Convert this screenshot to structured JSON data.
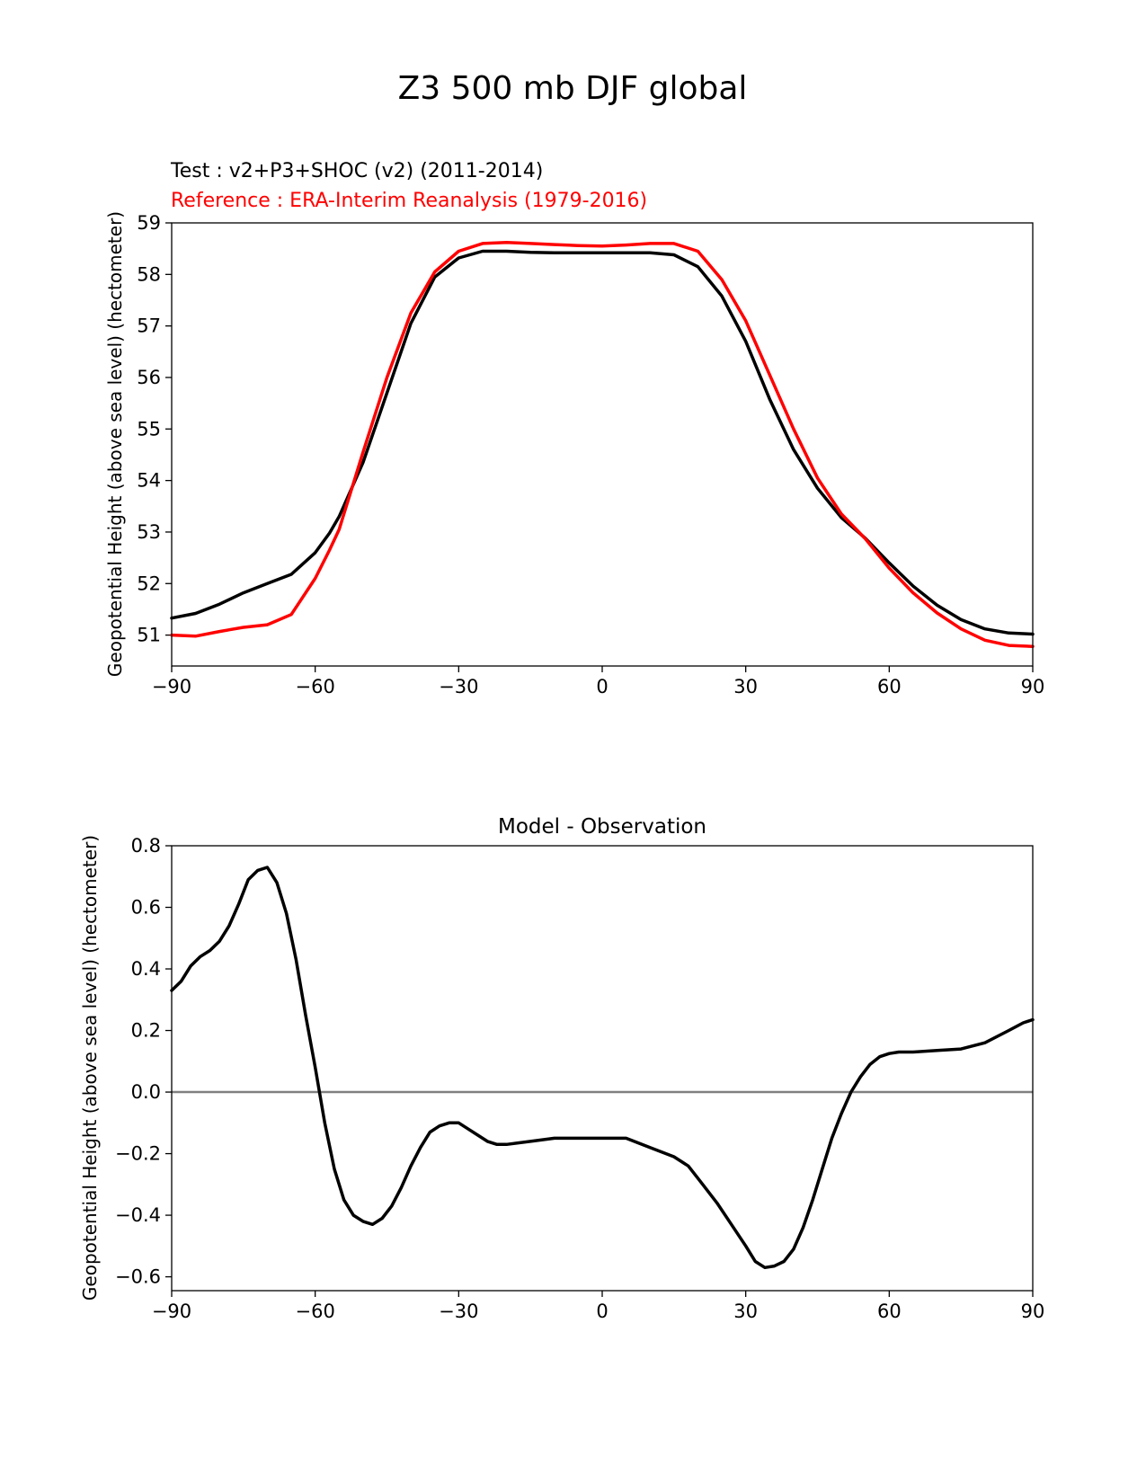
{
  "suptitle": "Z3 500 mb DJF global",
  "chart_data": [
    {
      "type": "line",
      "test_label": "Test : v2+P3+SHOC (v2) (2011-2014)",
      "reference_label": "Reference : ERA-Interim Reanalysis (1979-2016)",
      "xlabel": "",
      "ylabel": "Geopotential Height (above sea level) (hectometer)",
      "xlim": [
        -90,
        90
      ],
      "ylim": [
        50.4,
        59
      ],
      "xticks": [
        -90,
        -60,
        -30,
        0,
        30,
        60,
        90
      ],
      "xtick_labels": [
        "−90",
        "−60",
        "−30",
        "0",
        "30",
        "60",
        "90"
      ],
      "yticks": [
        51,
        52,
        53,
        54,
        55,
        56,
        57,
        58,
        59
      ],
      "ytick_labels": [
        "51",
        "52",
        "53",
        "54",
        "55",
        "56",
        "57",
        "58",
        "59"
      ],
      "grid": false,
      "series": [
        {
          "name": "Test",
          "color": "#000000",
          "x": [
            -90,
            -85,
            -80,
            -75,
            -70,
            -65,
            -60,
            -57,
            -55,
            -50,
            -45,
            -40,
            -35,
            -30,
            -25,
            -20,
            -15,
            -10,
            -5,
            0,
            5,
            10,
            15,
            20,
            25,
            30,
            35,
            40,
            45,
            50,
            55,
            60,
            65,
            70,
            75,
            80,
            85,
            90
          ],
          "y": [
            51.33,
            51.42,
            51.6,
            51.82,
            52.0,
            52.18,
            52.6,
            52.98,
            53.3,
            54.35,
            55.7,
            57.05,
            57.95,
            58.32,
            58.45,
            58.45,
            58.43,
            58.42,
            58.42,
            58.42,
            58.42,
            58.42,
            58.38,
            58.15,
            57.58,
            56.7,
            55.58,
            54.6,
            53.85,
            53.28,
            52.88,
            52.4,
            51.95,
            51.58,
            51.3,
            51.12,
            51.04,
            51.02
          ]
        },
        {
          "name": "Reference",
          "color": "#ff0000",
          "x": [
            -90,
            -85,
            -80,
            -75,
            -70,
            -65,
            -60,
            -57,
            -55,
            -50,
            -45,
            -40,
            -35,
            -30,
            -25,
            -20,
            -15,
            -10,
            -5,
            0,
            5,
            10,
            15,
            20,
            25,
            30,
            35,
            40,
            45,
            50,
            55,
            60,
            65,
            70,
            75,
            80,
            85,
            90
          ],
          "y": [
            51.0,
            50.98,
            51.07,
            51.15,
            51.2,
            51.4,
            52.1,
            52.65,
            53.05,
            54.55,
            56.0,
            57.25,
            58.05,
            58.45,
            58.6,
            58.62,
            58.6,
            58.58,
            58.56,
            58.55,
            58.57,
            58.6,
            58.6,
            58.45,
            57.9,
            57.1,
            56.05,
            55.0,
            54.05,
            53.35,
            52.87,
            52.3,
            51.82,
            51.43,
            51.12,
            50.9,
            50.8,
            50.78
          ]
        }
      ]
    },
    {
      "type": "line",
      "title": "Model - Observation",
      "xlabel": "",
      "ylabel": "Geopotential Height (above sea level) (hectometer)",
      "xlim": [
        -90,
        90
      ],
      "ylim": [
        -0.645,
        0.8
      ],
      "xticks": [
        -90,
        -60,
        -30,
        0,
        30,
        60,
        90
      ],
      "xtick_labels": [
        "−90",
        "−60",
        "−30",
        "0",
        "30",
        "60",
        "90"
      ],
      "yticks": [
        -0.6,
        -0.4,
        -0.2,
        0.0,
        0.2,
        0.4,
        0.6,
        0.8
      ],
      "ytick_labels": [
        "−0.6",
        "−0.4",
        "−0.2",
        "0.0",
        "0.2",
        "0.4",
        "0.6",
        "0.8"
      ],
      "grid": false,
      "zero_line_color": "#808080",
      "series": [
        {
          "name": "Model - Observation",
          "color": "#000000",
          "x": [
            -90,
            -88,
            -86,
            -84,
            -82,
            -80,
            -78,
            -76,
            -74,
            -72,
            -70,
            -68,
            -66,
            -64,
            -62,
            -60,
            -58,
            -56,
            -54,
            -52,
            -50,
            -48,
            -46,
            -44,
            -42,
            -40,
            -38,
            -36,
            -34,
            -32,
            -30,
            -28,
            -26,
            -24,
            -22,
            -20,
            -15,
            -10,
            -5,
            0,
            5,
            10,
            15,
            18,
            21,
            24,
            27,
            30,
            32,
            34,
            36,
            38,
            40,
            42,
            44,
            46,
            48,
            50,
            52,
            54,
            56,
            58,
            60,
            62,
            65,
            70,
            75,
            80,
            85,
            88,
            90
          ],
          "y": [
            0.33,
            0.36,
            0.41,
            0.44,
            0.46,
            0.49,
            0.54,
            0.61,
            0.69,
            0.72,
            0.73,
            0.68,
            0.58,
            0.43,
            0.25,
            0.08,
            -0.1,
            -0.25,
            -0.35,
            -0.4,
            -0.42,
            -0.43,
            -0.41,
            -0.37,
            -0.31,
            -0.24,
            -0.18,
            -0.13,
            -0.11,
            -0.1,
            -0.1,
            -0.12,
            -0.14,
            -0.16,
            -0.17,
            -0.17,
            -0.16,
            -0.15,
            -0.15,
            -0.15,
            -0.15,
            -0.18,
            -0.21,
            -0.24,
            -0.3,
            -0.36,
            -0.43,
            -0.5,
            -0.55,
            -0.57,
            -0.565,
            -0.55,
            -0.51,
            -0.44,
            -0.35,
            -0.25,
            -0.15,
            -0.07,
            0.0,
            0.05,
            0.09,
            0.115,
            0.125,
            0.13,
            0.13,
            0.135,
            0.14,
            0.16,
            0.2,
            0.225,
            0.235
          ]
        }
      ]
    }
  ]
}
